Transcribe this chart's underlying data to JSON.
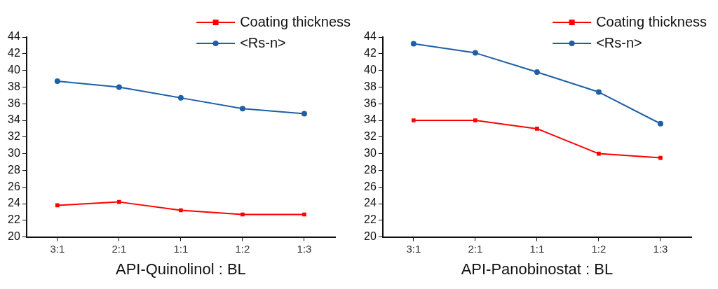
{
  "chart_data": [
    {
      "type": "line",
      "xlabel": "API-Quinolinol : BL",
      "categories": [
        "3:1",
        "2:1",
        "1:1",
        "1:2",
        "1:3"
      ],
      "series": [
        {
          "name": "Coating thickness",
          "color": "#ff0000",
          "marker": "square",
          "values": [
            23.8,
            24.2,
            23.2,
            22.7,
            22.7
          ]
        },
        {
          "name": "<Rs-n>",
          "color": "#1f5fa6",
          "marker": "circle",
          "values": [
            38.7,
            38.0,
            36.7,
            35.4,
            34.8
          ]
        }
      ],
      "ylim": [
        20,
        44
      ],
      "yticks": [
        20,
        22,
        24,
        26,
        28,
        30,
        32,
        34,
        36,
        38,
        40,
        42,
        44
      ],
      "grid": false,
      "legend": "top right",
      "line_style": "solid"
    },
    {
      "type": "line",
      "xlabel": "API-Panobinostat : BL",
      "categories": [
        "3:1",
        "2:1",
        "1:1",
        "1:2",
        "1:3"
      ],
      "series": [
        {
          "name": "Coating thickness",
          "color": "#ff0000",
          "marker": "square",
          "values": [
            34,
            34,
            33,
            30,
            29.5
          ]
        },
        {
          "name": "<Rs-n>",
          "color": "#1f5fa6",
          "marker": "circle",
          "values": [
            43.2,
            42.1,
            39.8,
            37.4,
            33.6
          ]
        }
      ],
      "ylim": [
        20,
        44
      ],
      "yticks": [
        20,
        22,
        24,
        26,
        28,
        30,
        32,
        34,
        36,
        38,
        40,
        42,
        44
      ],
      "grid": false,
      "legend": "top right",
      "line_style": "solid"
    }
  ]
}
